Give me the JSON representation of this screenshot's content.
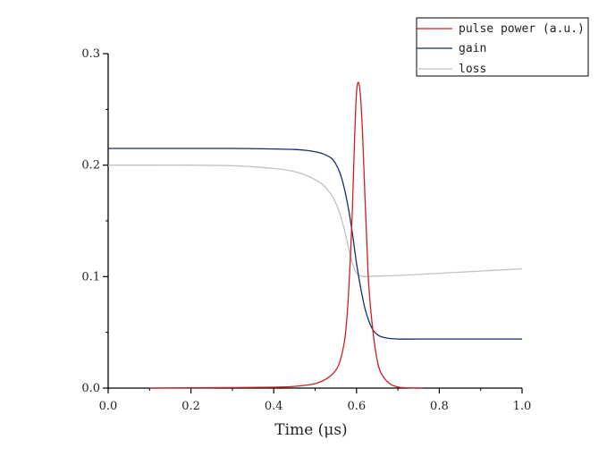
{
  "chart_data": {
    "type": "line",
    "title": "",
    "xlabel": "Time (μs)",
    "ylabel": "",
    "xlim": [
      0.0,
      1.0
    ],
    "ylim": [
      0.0,
      0.3
    ],
    "x_ticks": [
      "0.0",
      "0.2",
      "0.4",
      "0.6",
      "0.8",
      "1.0"
    ],
    "y_ticks": [
      "0.0",
      "0.1",
      "0.2",
      "0.3"
    ],
    "grid": false,
    "legend_position": "top-right",
    "series": [
      {
        "name": "pulse power (a.u.)",
        "color": "#cc1f1f",
        "x": [
          0.1,
          0.3,
          0.4,
          0.45,
          0.5,
          0.53,
          0.55,
          0.56,
          0.57,
          0.575,
          0.58,
          0.585,
          0.59,
          0.595,
          0.6,
          0.605,
          0.61,
          0.615,
          0.62,
          0.625,
          0.63,
          0.64,
          0.65,
          0.66,
          0.68,
          0.7,
          0.72,
          0.76
        ],
        "y": [
          0.0,
          0.0005,
          0.0008,
          0.0015,
          0.004,
          0.009,
          0.016,
          0.024,
          0.04,
          0.055,
          0.08,
          0.115,
          0.16,
          0.22,
          0.265,
          0.274,
          0.26,
          0.225,
          0.175,
          0.13,
          0.09,
          0.05,
          0.025,
          0.013,
          0.004,
          0.001,
          0.0003,
          0.0
        ]
      },
      {
        "name": "gain",
        "color": "#1a2a6e",
        "x": [
          0.0,
          0.2,
          0.3,
          0.35,
          0.4,
          0.45,
          0.48,
          0.5,
          0.52,
          0.54,
          0.55,
          0.56,
          0.57,
          0.58,
          0.59,
          0.6,
          0.61,
          0.62,
          0.63,
          0.64,
          0.65,
          0.66,
          0.68,
          0.7,
          0.75,
          0.85,
          1.0
        ],
        "y": [
          0.215,
          0.215,
          0.215,
          0.2148,
          0.2145,
          0.214,
          0.2132,
          0.212,
          0.21,
          0.206,
          0.201,
          0.193,
          0.18,
          0.162,
          0.139,
          0.112,
          0.09,
          0.072,
          0.06,
          0.052,
          0.048,
          0.046,
          0.0445,
          0.044,
          0.044,
          0.044,
          0.044
        ]
      },
      {
        "name": "loss",
        "color": "#c2c2c2",
        "x": [
          0.0,
          0.1,
          0.2,
          0.3,
          0.35,
          0.4,
          0.44,
          0.47,
          0.5,
          0.52,
          0.54,
          0.55,
          0.56,
          0.57,
          0.58,
          0.59,
          0.6,
          0.61,
          0.62,
          0.65,
          0.7,
          0.8,
          0.9,
          1.0
        ],
        "y": [
          0.2,
          0.2,
          0.2,
          0.1995,
          0.1985,
          0.197,
          0.195,
          0.192,
          0.187,
          0.182,
          0.173,
          0.166,
          0.156,
          0.143,
          0.127,
          0.112,
          0.103,
          0.1005,
          0.1,
          0.1005,
          0.101,
          0.103,
          0.105,
          0.107
        ]
      }
    ]
  }
}
